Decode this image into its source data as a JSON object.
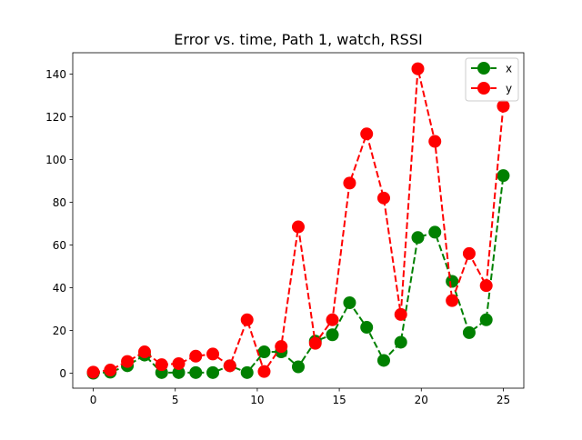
{
  "chart_data": {
    "type": "line",
    "title": "Error vs. time, Path 1, watch, RSSI",
    "xlabel": "",
    "ylabel": "",
    "xlim": [
      -1.25,
      26.25
    ],
    "ylim": [
      -7,
      150
    ],
    "xticks": [
      0,
      5,
      10,
      15,
      20,
      25
    ],
    "yticks": [
      0,
      20,
      40,
      60,
      80,
      100,
      120,
      140
    ],
    "grid": false,
    "legend_position": "top-right",
    "series": [
      {
        "name": "x",
        "color": "#008000",
        "line_style": "dashed",
        "marker": "circle",
        "x": [
          0,
          1.04,
          2.08,
          3.13,
          4.17,
          5.21,
          6.25,
          7.29,
          8.33,
          9.38,
          10.42,
          11.46,
          12.5,
          13.54,
          14.58,
          15.63,
          16.67,
          17.71,
          18.75,
          19.79,
          20.83,
          21.88,
          22.92,
          23.96,
          25.0
        ],
        "y": [
          0,
          0.5,
          3.5,
          8.5,
          0.3,
          0.3,
          0.3,
          0.3,
          3.5,
          0.3,
          10,
          10,
          3,
          15,
          18,
          33,
          21.5,
          6,
          14.5,
          63.5,
          66,
          43,
          19,
          25,
          92.5
        ]
      },
      {
        "name": "y",
        "color": "#ff0000",
        "line_style": "dashed",
        "marker": "circle",
        "x": [
          0,
          1.04,
          2.08,
          3.13,
          4.17,
          5.21,
          6.25,
          7.29,
          8.33,
          9.38,
          10.42,
          11.46,
          12.5,
          13.54,
          14.58,
          15.63,
          16.67,
          17.71,
          18.75,
          19.79,
          20.83,
          21.88,
          22.92,
          23.96,
          25.0
        ],
        "y": [
          0.5,
          1.5,
          5.5,
          10,
          4,
          4.5,
          8,
          9,
          3.5,
          25,
          0.8,
          12.5,
          68.5,
          14,
          25,
          89,
          112,
          82,
          27.5,
          142.5,
          108.5,
          34,
          56,
          41,
          125
        ]
      }
    ]
  }
}
